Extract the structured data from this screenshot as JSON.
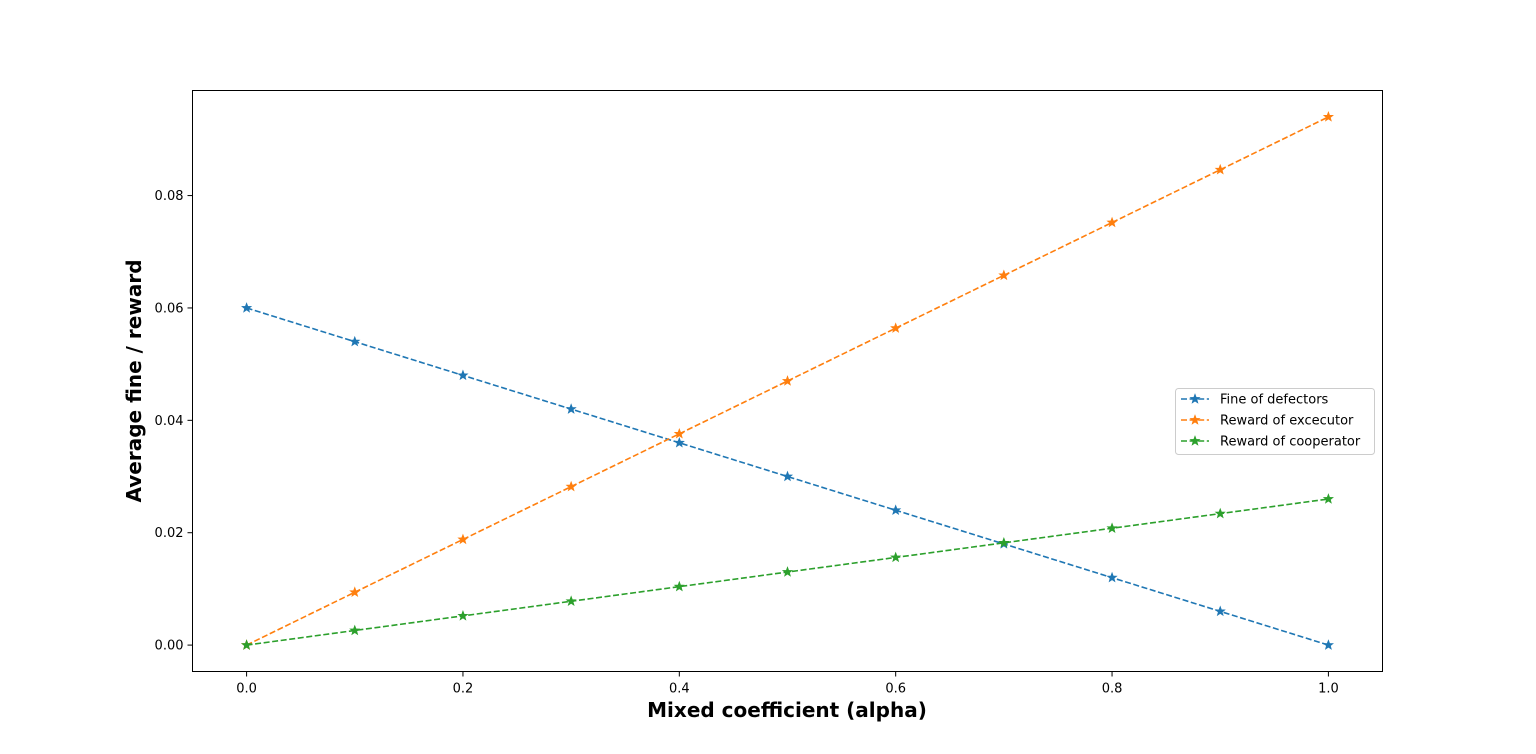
{
  "chart_data": {
    "type": "line",
    "title": "",
    "xlabel": "Mixed coefficient (alpha)",
    "ylabel": "Average fine / reward",
    "xlim": [
      -0.05,
      1.05
    ],
    "ylim": [
      -0.0047,
      0.0987
    ],
    "x": [
      0.0,
      0.1,
      0.2,
      0.3,
      0.4,
      0.5,
      0.6,
      0.7,
      0.8,
      0.9,
      1.0
    ],
    "x_ticks": [
      0.0,
      0.2,
      0.4,
      0.6,
      0.8,
      1.0
    ],
    "x_tick_labels": [
      "0.0",
      "0.2",
      "0.4",
      "0.6",
      "0.8",
      "1.0"
    ],
    "y_ticks": [
      0.0,
      0.02,
      0.04,
      0.06,
      0.08
    ],
    "y_tick_labels": [
      "0.00",
      "0.02",
      "0.04",
      "0.06",
      "0.08"
    ],
    "grid": false,
    "legend_position": "center-right",
    "line_style": "dashed",
    "marker": "star",
    "series": [
      {
        "name": "Fine of defectors",
        "color": "#1f77b4",
        "values": [
          0.06,
          0.054,
          0.048,
          0.042,
          0.036,
          0.03,
          0.024,
          0.018,
          0.012,
          0.006,
          0.0
        ]
      },
      {
        "name": "Reward of excecutor",
        "color": "#ff7f0e",
        "values": [
          0.0,
          0.0094,
          0.0188,
          0.0282,
          0.0376,
          0.047,
          0.0564,
          0.0658,
          0.0752,
          0.0846,
          0.094
        ]
      },
      {
        "name": "Reward of cooperator",
        "color": "#2ca02c",
        "values": [
          0.0,
          0.0026,
          0.0052,
          0.0078,
          0.0104,
          0.013,
          0.0156,
          0.0182,
          0.0208,
          0.0234,
          0.026
        ]
      }
    ]
  }
}
